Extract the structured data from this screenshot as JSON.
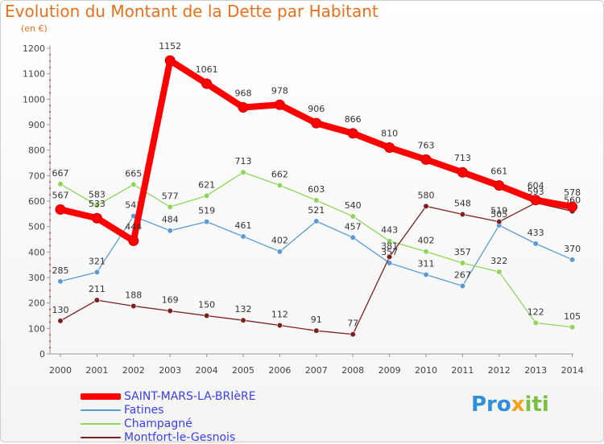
{
  "header": {
    "title": "Evolution du Montant de la Dette par Habitant",
    "unit": "(en €)"
  },
  "logo": {
    "text": "Proxiti",
    "part1": "Pro",
    "part2": "x",
    "part3": "iti"
  },
  "chart_data": {
    "type": "line",
    "x": [
      "2000",
      "2001",
      "2002",
      "2003",
      "2004",
      "2005",
      "2006",
      "2007",
      "2008",
      "2009",
      "2010",
      "2011",
      "2012",
      "2013",
      "2014"
    ],
    "ylim": [
      0,
      1200
    ],
    "yticks": [
      0,
      100,
      200,
      300,
      400,
      500,
      600,
      700,
      800,
      900,
      1000,
      1100,
      1200
    ],
    "grid": false,
    "legend_position": "bottom-left",
    "series": [
      {
        "name": "SAINT-MARS-LA-BRIèRE",
        "color": "#ff0000",
        "values": [
          567,
          533,
          444,
          1152,
          1061,
          968,
          978,
          906,
          866,
          810,
          763,
          713,
          661,
          604,
          578
        ]
      },
      {
        "name": "Fatines",
        "color": "#5b9bd5",
        "values": [
          285,
          321,
          541,
          484,
          519,
          461,
          402,
          521,
          457,
          357,
          311,
          267,
          505,
          433,
          370
        ]
      },
      {
        "name": "Champagné",
        "color": "#8fd55a",
        "values": [
          667,
          583,
          665,
          577,
          621,
          713,
          662,
          603,
          540,
          443,
          402,
          357,
          322,
          122,
          105
        ]
      },
      {
        "name": "Montfort-le-Gesnois",
        "color": "#7b1f1f",
        "values": [
          130,
          211,
          188,
          169,
          150,
          132,
          112,
          91,
          77,
          381,
          580,
          548,
          519,
          593,
          560
        ]
      }
    ]
  }
}
